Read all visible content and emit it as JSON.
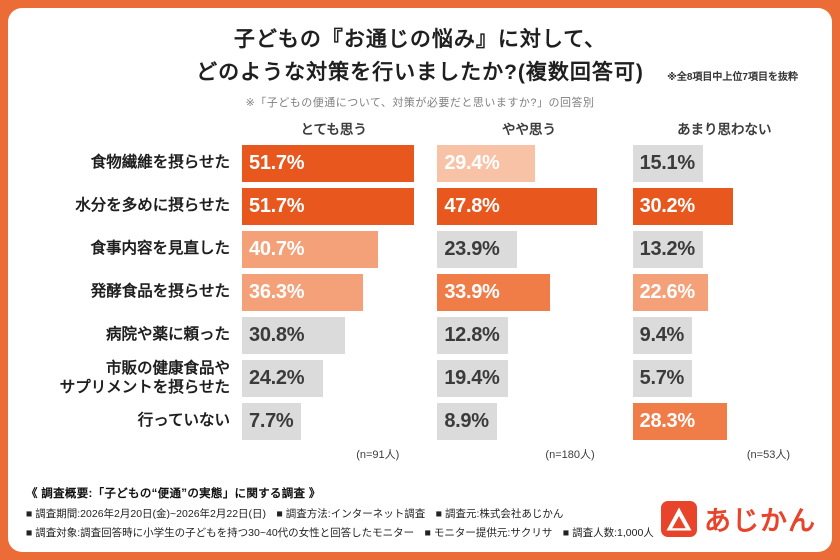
{
  "colors": {
    "frame": "#EC6C38",
    "strong": "#E7571E",
    "medium": "#F07C48",
    "light": "#F4A078",
    "pale": "#F8C2A6",
    "gray": "#DBDBDB",
    "logo": "#E8442B"
  },
  "title": {
    "line1": "子どもの『お通じの悩み』に対して、",
    "line2": "どのような対策を行いましたか?(複数回答可)",
    "note": "※全8項目中上位7項目を抜粋",
    "subtitle": "※「子どもの便通について、対策が必要だと思いますか?」の回答別"
  },
  "chart_data": {
    "type": "bar",
    "orientation": "horizontal",
    "title": "子どもの『お通じの悩み』に対して、どのような対策を行いましたか?(複数回答可)",
    "categories": [
      "食物繊維を摂らせた",
      "水分を多めに摂らせた",
      "食事内容を見直した",
      "発酵食品を摂らせた",
      "病院や薬に頼った",
      "市販の健康食品や\nサプリメントを摂らせた",
      "行っていない"
    ],
    "series": [
      {
        "name": "とても思う",
        "n_label": "(n=91人)",
        "values": [
          51.7,
          51.7,
          40.7,
          36.3,
          30.8,
          24.2,
          7.7
        ]
      },
      {
        "name": "やや思う",
        "n_label": "(n=180人)",
        "values": [
          29.4,
          47.8,
          23.9,
          33.9,
          12.8,
          19.4,
          8.9
        ]
      },
      {
        "name": "あまり思わない",
        "n_label": "(n=53人)",
        "values": [
          15.1,
          30.2,
          13.2,
          22.6,
          9.4,
          5.7,
          28.3
        ]
      }
    ],
    "xlim": [
      0,
      55
    ],
    "value_suffix": "%",
    "legend_position": "column-headers",
    "grid": false
  },
  "presentation": {
    "max": 55,
    "tones": [
      [
        "strong",
        "pale",
        "gray"
      ],
      [
        "strong",
        "strong",
        "strong"
      ],
      [
        "light",
        "gray",
        "gray"
      ],
      [
        "light",
        "medium",
        "light"
      ],
      [
        "gray",
        "gray",
        "gray"
      ],
      [
        "gray",
        "gray",
        "gray"
      ],
      [
        "gray",
        "gray",
        "medium"
      ]
    ]
  },
  "footer": {
    "summary": "《 調査概要:「子どもの“便通”の実態」に関する調査 》",
    "meta1": "■ 調査期間:2026年2月20日(金)~2026年2月22日(日)　■ 調査方法:インターネット調査　■ 調査元:株式会社あじかん",
    "meta2": "■ 調査対象:調査回答時に小学生の子どもを持つ30~40代の女性と回答したモニター　■ モニター提供元:サクリサ　■ 調査人数:1,000人",
    "logo_text": "あじかん"
  }
}
